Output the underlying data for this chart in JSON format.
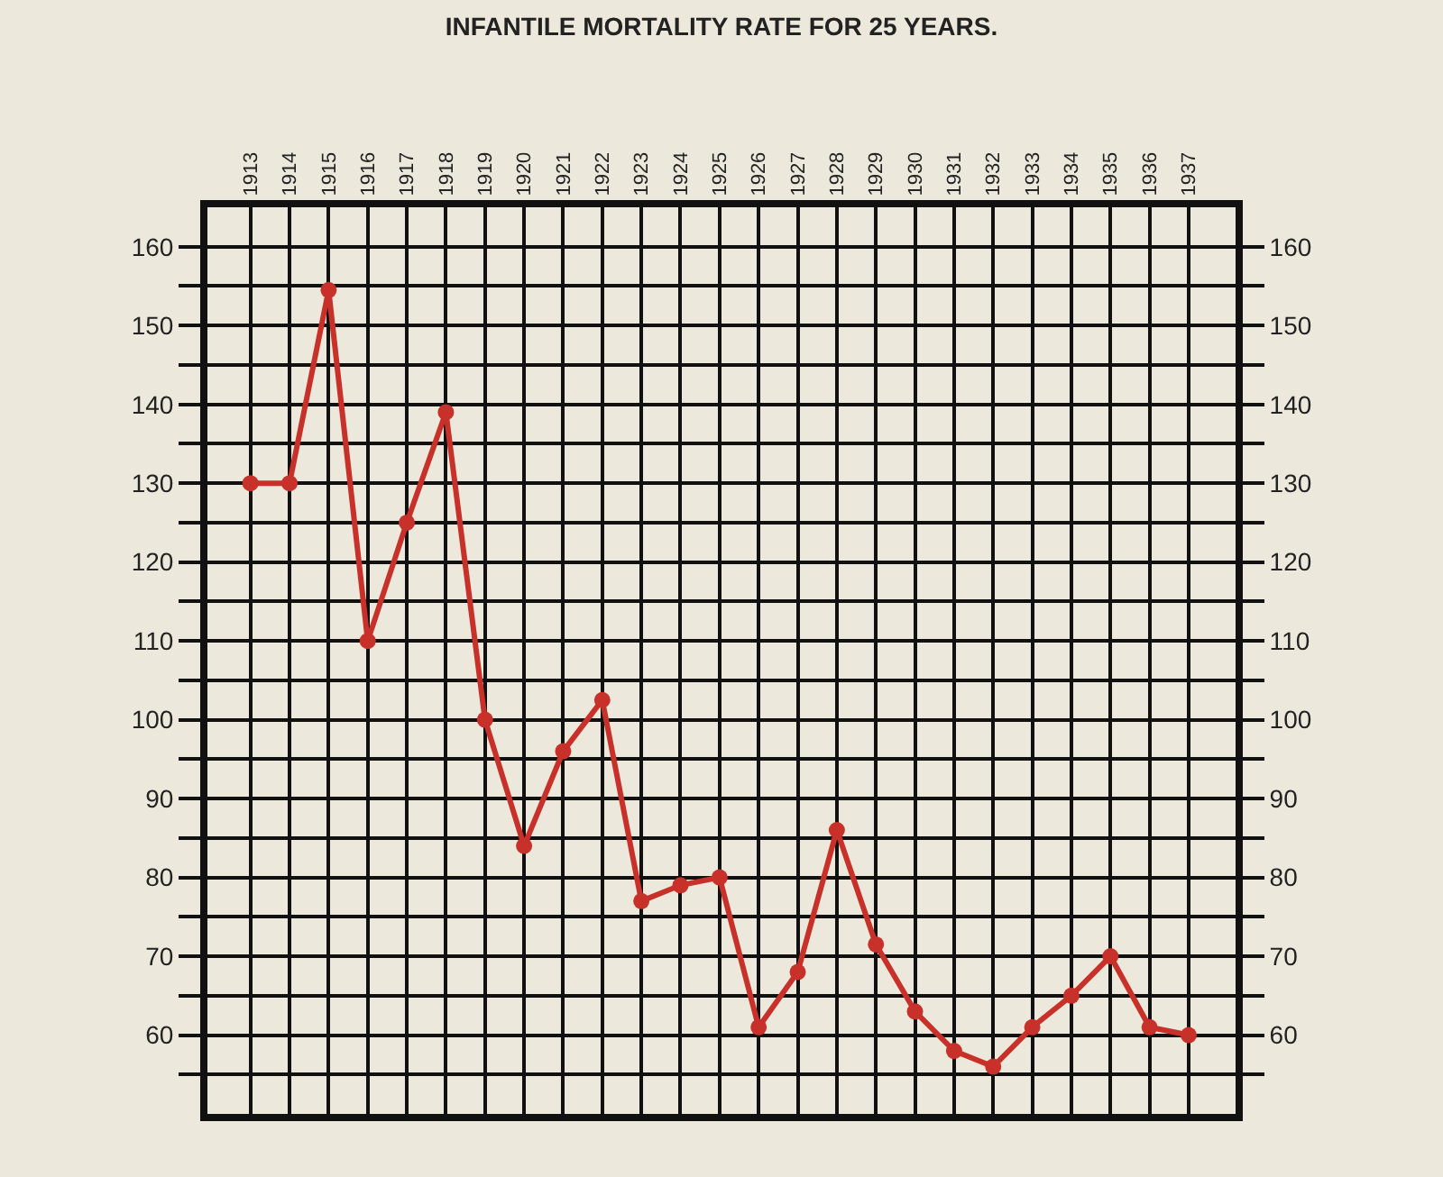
{
  "chart_data": {
    "type": "line",
    "title": "INFANTILE MORTALITY RATE FOR 25 YEARS.",
    "categories": [
      "1913",
      "1914",
      "1915",
      "1916",
      "1917",
      "1918",
      "1919",
      "1920",
      "1921",
      "1922",
      "1923",
      "1924",
      "1925",
      "1926",
      "1927",
      "1928",
      "1929",
      "1930",
      "1931",
      "1932",
      "1933",
      "1934",
      "1935",
      "1936",
      "1937"
    ],
    "series": [
      {
        "color": "#c8302a",
        "values": [
          130,
          130,
          154.5,
          110,
          125,
          139,
          100,
          84,
          96,
          102.5,
          77,
          79,
          80,
          61,
          68,
          86,
          71.5,
          63,
          58,
          56,
          61,
          65,
          70,
          61,
          60
        ]
      }
    ],
    "ylim": [
      50,
      165
    ],
    "yticks": [
      {
        "value": 55,
        "label": null
      },
      60,
      {
        "value": 65,
        "label": null
      },
      70,
      {
        "value": 75,
        "label": null
      },
      80,
      {
        "value": 85,
        "label": null
      },
      90,
      {
        "value": 95,
        "label": null
      },
      100,
      {
        "value": 105,
        "label": null
      },
      110,
      {
        "value": 115,
        "label": null
      },
      120,
      {
        "value": 125,
        "label": null
      },
      130,
      {
        "value": 135,
        "label": null
      },
      140,
      {
        "value": 145,
        "label": null
      },
      150,
      {
        "value": 155,
        "label": null
      },
      160
    ],
    "y2lim": [
      50,
      165
    ],
    "y2ticks": [
      {
        "value": 55,
        "label": null
      },
      60,
      {
        "value": 65,
        "label": null
      },
      70,
      {
        "value": 75,
        "label": null
      },
      80,
      {
        "value": 85,
        "label": null
      },
      90,
      {
        "value": 95,
        "label": null
      },
      100,
      {
        "value": 105,
        "label": null
      },
      110,
      {
        "value": 115,
        "label": null
      },
      120,
      {
        "value": 125,
        "label": null
      },
      130,
      {
        "value": 135,
        "label": null
      },
      140,
      {
        "value": 145,
        "label": null
      },
      150,
      {
        "value": 155,
        "label": null
      },
      160
    ],
    "grid": true,
    "marker": "circle",
    "line_style": "solid"
  }
}
